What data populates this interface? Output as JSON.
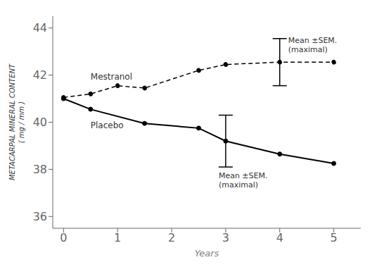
{
  "chart_data": {
    "type": "line",
    "xlabel": "Years",
    "ylabel": "METACARPAL MINERAL CONTENT\n( mg / mm )",
    "xlim": [
      -0.2,
      5.5
    ],
    "ylim": [
      35.5,
      44.5
    ],
    "xticks": [
      0,
      1,
      2,
      3,
      4,
      5
    ],
    "yticks": [
      36,
      38,
      40,
      42,
      44
    ],
    "grid": false,
    "annotations": [
      "Mean ±SEM.\n(maximal)",
      "Mean ±SEM.\n(maximal)"
    ],
    "series": [
      {
        "name": "Mestranol",
        "color": "black",
        "line_style": "dashed",
        "marker": "circle",
        "x": [
          0,
          0.5,
          1.0,
          1.5,
          2.5,
          3.0,
          4.0,
          5.0
        ],
        "values": [
          41.05,
          41.2,
          41.55,
          41.45,
          42.2,
          42.45,
          42.55,
          42.55
        ],
        "errors": [
          null,
          null,
          null,
          null,
          null,
          null,
          1.0,
          null
        ]
      },
      {
        "name": "Placebo",
        "color": "black",
        "line_style": "solid",
        "marker": "circle",
        "x": [
          0,
          0.5,
          1.5,
          2.5,
          3.0,
          4.0,
          5.0
        ],
        "values": [
          41.0,
          40.55,
          39.95,
          39.75,
          39.2,
          38.65,
          38.25
        ],
        "errors": [
          null,
          null,
          null,
          null,
          1.1,
          null,
          null
        ]
      }
    ]
  }
}
